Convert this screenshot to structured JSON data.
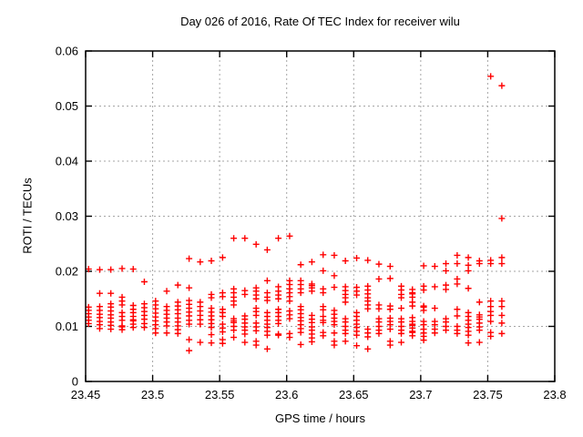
{
  "chart_data": {
    "type": "scatter",
    "title": "Day 026 of 2016, Rate Of TEC Index for receiver wilu",
    "xlabel": "GPS time / hours",
    "ylabel": "ROTI / TECUs",
    "xlim": [
      23.45,
      23.8
    ],
    "ylim": [
      0,
      0.06
    ],
    "xticks": [
      23.45,
      23.5,
      23.55,
      23.6,
      23.65,
      23.7,
      23.75,
      23.8
    ],
    "xtick_labels": [
      "23.45",
      "23.5",
      "23.55",
      "23.6",
      "23.65",
      "23.7",
      "23.75",
      "23.8"
    ],
    "yticks": [
      0,
      0.01,
      0.02,
      0.03,
      0.04,
      0.05,
      0.06
    ],
    "ytick_labels": [
      "0",
      "0.01",
      "0.02",
      "0.03",
      "0.04",
      "0.05",
      "0.06"
    ],
    "grid": true,
    "legend_position": "none",
    "marker": "plus",
    "marker_color": "#ff0000",
    "series": [
      {
        "name": "ROTI",
        "columns": [
          {
            "t": 23.4522,
            "v": [
              0.0204,
              0.0135,
              0.0129,
              0.0123,
              0.0117,
              0.0111,
              0.0105
            ]
          },
          {
            "t": 23.4605,
            "v": [
              0.0203,
              0.016,
              0.0136,
              0.0129,
              0.0122,
              0.0116,
              0.0109,
              0.0103,
              0.0096
            ]
          },
          {
            "t": 23.4688,
            "v": [
              0.0203,
              0.016,
              0.0141,
              0.0135,
              0.0128,
              0.0121,
              0.0115,
              0.0108,
              0.0102,
              0.0095
            ]
          },
          {
            "t": 23.4772,
            "v": [
              0.0205,
              0.0153,
              0.0146,
              0.0139,
              0.0125,
              0.0118,
              0.0111,
              0.0101,
              0.0099,
              0.0094
            ]
          },
          {
            "t": 23.4855,
            "v": [
              0.0204,
              0.0138,
              0.0131,
              0.0125,
              0.0118,
              0.0112,
              0.011,
              0.0104,
              0.0098
            ]
          },
          {
            "t": 23.4938,
            "v": [
              0.0181,
              0.0141,
              0.0134,
              0.0127,
              0.012,
              0.0113,
              0.0105,
              0.0098
            ]
          },
          {
            "t": 23.5022,
            "v": [
              0.0146,
              0.0139,
              0.0132,
              0.0124,
              0.0117,
              0.011,
              0.0103,
              0.0096,
              0.0088
            ]
          },
          {
            "t": 23.5105,
            "v": [
              0.0164,
              0.0136,
              0.0129,
              0.0122,
              0.0115,
              0.0108,
              0.0101,
              0.0088
            ]
          },
          {
            "t": 23.5188,
            "v": [
              0.0175,
              0.0144,
              0.0137,
              0.013,
              0.0123,
              0.0115,
              0.0108,
              0.0101,
              0.0094,
              0.0087
            ]
          },
          {
            "t": 23.5272,
            "v": [
              0.0223,
              0.017,
              0.0147,
              0.014,
              0.0133,
              0.0126,
              0.0119,
              0.0111,
              0.0104,
              0.0076,
              0.0056
            ]
          },
          {
            "t": 23.5355,
            "v": [
              0.0217,
              0.0144,
              0.0136,
              0.0128,
              0.012,
              0.0112,
              0.0104,
              0.0071
            ]
          },
          {
            "t": 23.5438,
            "v": [
              0.0219,
              0.0158,
              0.0152,
              0.0133,
              0.0126,
              0.0119,
              0.0112,
              0.0105,
              0.0098,
              0.0085,
              0.007
            ]
          },
          {
            "t": 23.5522,
            "v": [
              0.0225,
              0.0161,
              0.0154,
              0.0131,
              0.0125,
              0.0118,
              0.0104,
              0.0097,
              0.009,
              0.0076,
              0.0069
            ]
          },
          {
            "t": 23.5605,
            "v": [
              0.026,
              0.0168,
              0.0161,
              0.0153,
              0.0146,
              0.0139,
              0.0114,
              0.011,
              0.0107,
              0.01,
              0.0093,
              0.008
            ]
          },
          {
            "t": 23.5688,
            "v": [
              0.026,
              0.0165,
              0.0158,
              0.0119,
              0.0113,
              0.0106,
              0.0099,
              0.0093,
              0.0086,
              0.0071
            ]
          },
          {
            "t": 23.5772,
            "v": [
              0.0249,
              0.017,
              0.0164,
              0.0157,
              0.015,
              0.0133,
              0.0127,
              0.012,
              0.0106,
              0.0099,
              0.0092,
              0.0073,
              0.0066
            ]
          },
          {
            "t": 23.5855,
            "v": [
              0.0239,
              0.0183,
              0.0161,
              0.0153,
              0.0147,
              0.0125,
              0.0118,
              0.0111,
              0.0104,
              0.0098,
              0.0091,
              0.0084,
              0.0059
            ]
          },
          {
            "t": 23.5938,
            "v": [
              0.026,
              0.0172,
              0.0164,
              0.0157,
              0.015,
              0.0131,
              0.0125,
              0.0118,
              0.0111,
              0.0105,
              0.0086,
              0.0084
            ]
          },
          {
            "t": 23.6022,
            "v": [
              0.0264,
              0.0183,
              0.0176,
              0.0168,
              0.0161,
              0.0154,
              0.0146,
              0.0128,
              0.0121,
              0.0114,
              0.0087,
              0.008
            ]
          },
          {
            "t": 23.6105,
            "v": [
              0.0212,
              0.0183,
              0.0176,
              0.0168,
              0.0161,
              0.0136,
              0.013,
              0.0123,
              0.0116,
              0.011,
              0.0103,
              0.0096,
              0.0089,
              0.0067
            ]
          },
          {
            "t": 23.6188,
            "v": [
              0.0217,
              0.0177,
              0.0174,
              0.017,
              0.0164,
              0.012,
              0.0113,
              0.0107,
              0.0099,
              0.0093,
              0.0086,
              0.0079,
              0.0072
            ]
          },
          {
            "t": 23.6272,
            "v": [
              0.023,
              0.0201,
              0.0168,
              0.0161,
              0.0136,
              0.013,
              0.0118,
              0.0111,
              0.0107,
              0.0089,
              0.0083
            ]
          },
          {
            "t": 23.6355,
            "v": [
              0.0229,
              0.0192,
              0.0171,
              0.0129,
              0.0122,
              0.0115,
              0.0109,
              0.0103,
              0.0088,
              0.0073,
              0.0066
            ]
          },
          {
            "t": 23.6438,
            "v": [
              0.0219,
              0.0172,
              0.0165,
              0.0158,
              0.0152,
              0.0144,
              0.0114,
              0.0108,
              0.01,
              0.0093,
              0.0087,
              0.0073
            ]
          },
          {
            "t": 23.6522,
            "v": [
              0.0224,
              0.0171,
              0.0164,
              0.0157,
              0.0125,
              0.0118,
              0.0111,
              0.0104,
              0.0098,
              0.0091,
              0.0084,
              0.0065
            ]
          },
          {
            "t": 23.6605,
            "v": [
              0.022,
              0.0173,
              0.0166,
              0.0159,
              0.0152,
              0.0146,
              0.0139,
              0.0132,
              0.0095,
              0.0088,
              0.0081,
              0.0059
            ]
          },
          {
            "t": 23.6688,
            "v": [
              0.0213,
              0.0186,
              0.0139,
              0.0132,
              0.0114,
              0.0108,
              0.01,
              0.0093,
              0.0087
            ]
          },
          {
            "t": 23.6772,
            "v": [
              0.0209,
              0.0187,
              0.0137,
              0.0131,
              0.0115,
              0.0109,
              0.0103,
              0.0095,
              0.0073,
              0.0066
            ]
          },
          {
            "t": 23.6855,
            "v": [
              0.0173,
              0.0166,
              0.0158,
              0.0152,
              0.0133,
              0.0114,
              0.0108,
              0.01,
              0.0093,
              0.0087,
              0.0071
            ]
          },
          {
            "t": 23.6938,
            "v": [
              0.0167,
              0.0161,
              0.0159,
              0.0153,
              0.0144,
              0.0137,
              0.0116,
              0.0109,
              0.0104,
              0.0102,
              0.0097,
              0.0091,
              0.0089,
              0.0083
            ]
          },
          {
            "t": 23.7022,
            "v": [
              0.021,
              0.0173,
              0.0166,
              0.0137,
              0.0135,
              0.0129,
              0.0109,
              0.0103,
              0.0095,
              0.0088,
              0.0082,
              0.0075
            ]
          },
          {
            "t": 23.7105,
            "v": [
              0.0209,
              0.0172,
              0.0133,
              0.0109,
              0.0103,
              0.0095,
              0.0088
            ]
          },
          {
            "t": 23.7188,
            "v": [
              0.0214,
              0.0201,
              0.0175,
              0.0167,
              0.0114,
              0.0108,
              0.01,
              0.0093
            ]
          },
          {
            "t": 23.7272,
            "v": [
              0.0229,
              0.0214,
              0.0186,
              0.0177,
              0.0131,
              0.0119,
              0.01,
              0.0093,
              0.0087
            ]
          },
          {
            "t": 23.7355,
            "v": [
              0.0225,
              0.0211,
              0.0201,
              0.0169,
              0.0125,
              0.0118,
              0.0111,
              0.0104,
              0.0098,
              0.0091,
              0.0084,
              0.007
            ]
          },
          {
            "t": 23.7438,
            "v": [
              0.0219,
              0.0214,
              0.0144,
              0.0121,
              0.0117,
              0.0113,
              0.0106,
              0.0099,
              0.0093,
              0.0071
            ]
          },
          {
            "t": 23.7522,
            "v": [
              0.0554,
              0.022,
              0.0214,
              0.0146,
              0.0136,
              0.0127,
              0.012,
              0.0109,
              0.0089,
              0.0082
            ]
          },
          {
            "t": 23.7605,
            "v": [
              0.0537,
              0.0296,
              0.0225,
              0.0214,
              0.0146,
              0.0136,
              0.012,
              0.0106,
              0.0087
            ]
          }
        ]
      }
    ]
  }
}
